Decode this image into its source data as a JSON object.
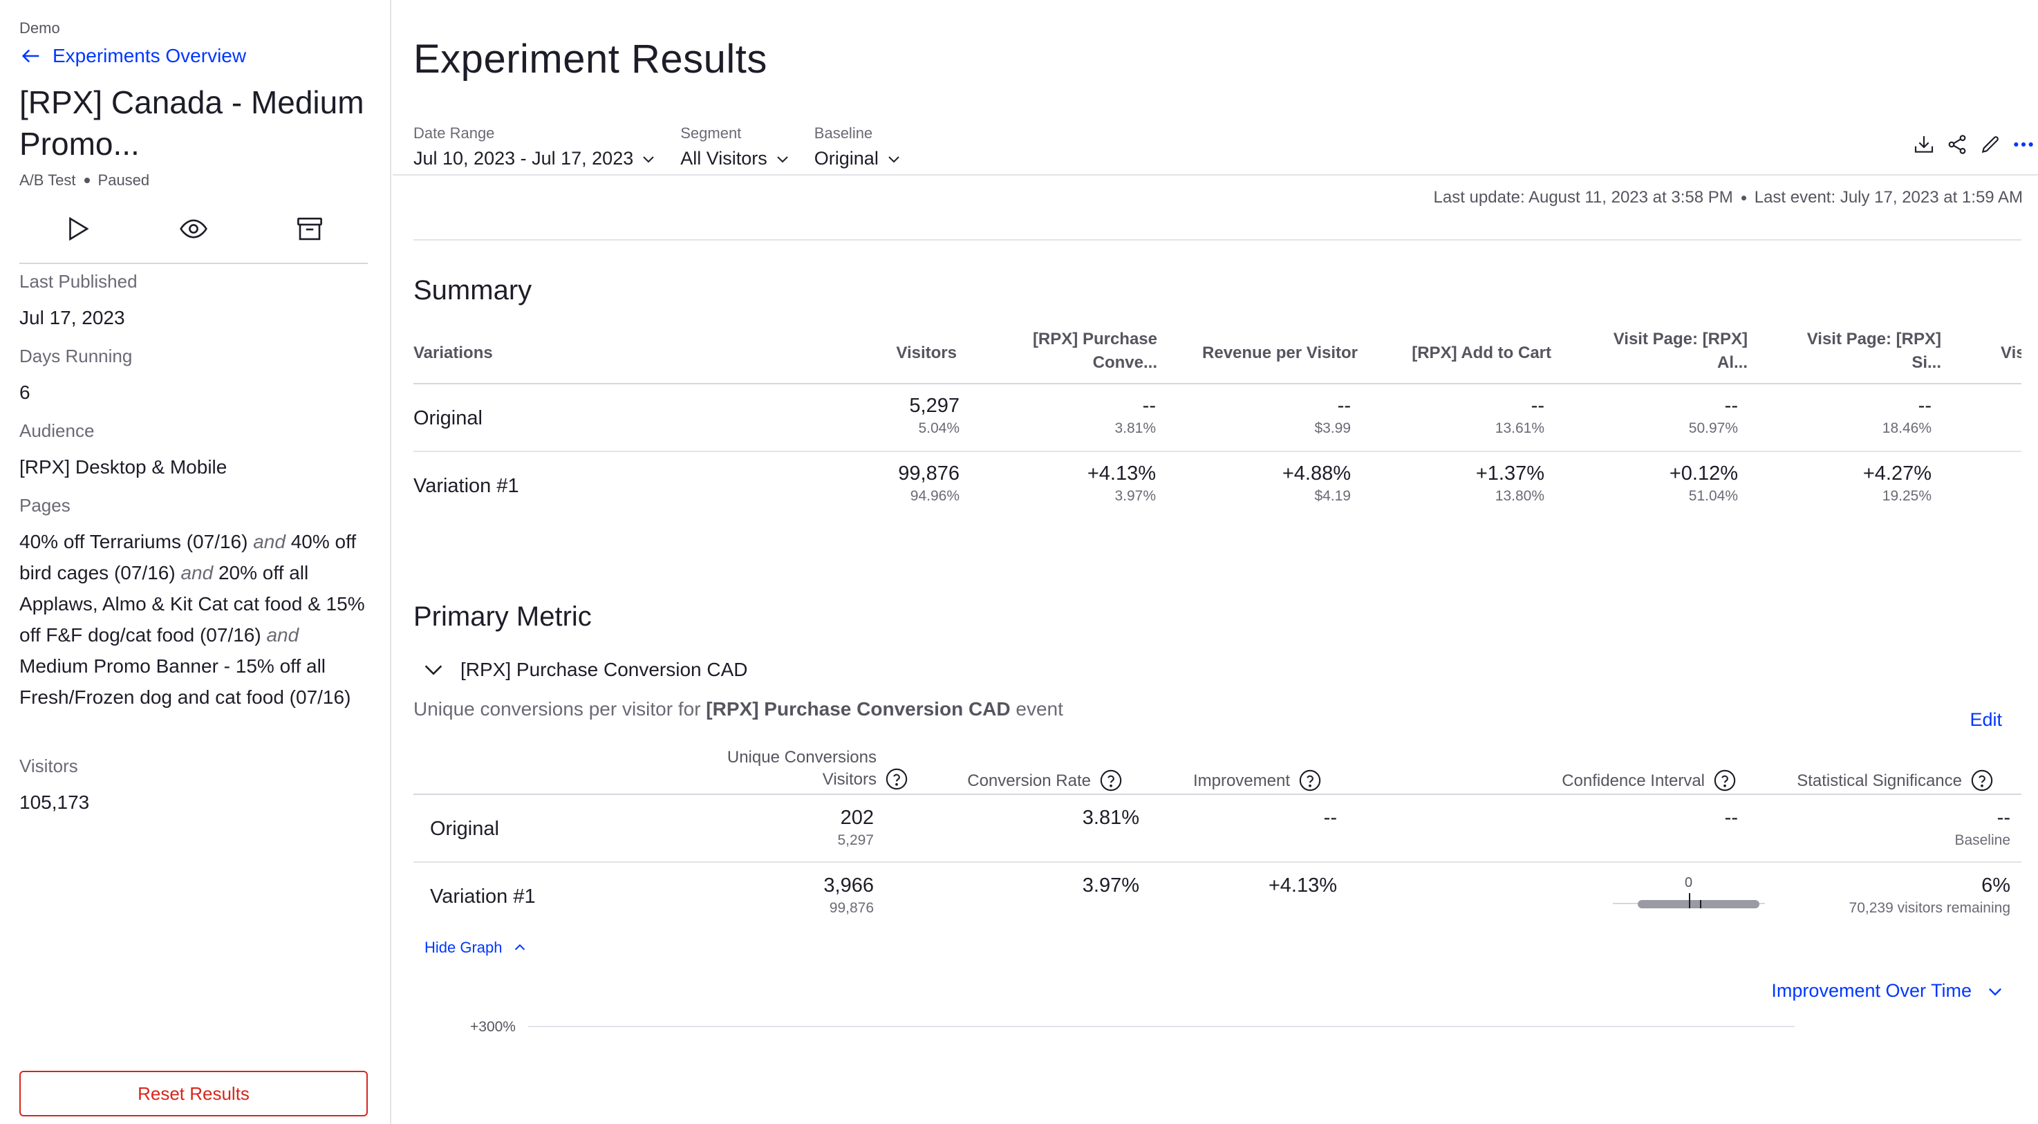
{
  "sidebar": {
    "project": "Demo",
    "back_label": "Experiments Overview",
    "title": "[RPX] Canada - Medium Promo...",
    "type": "A/B Test",
    "status": "Paused",
    "last_published_label": "Last Published",
    "last_published_value": "Jul 17, 2023",
    "days_running_label": "Days Running",
    "days_running_value": "6",
    "audience_label": "Audience",
    "audience_value": "[RPX] Desktop & Mobile",
    "pages_label": "Pages",
    "pages": [
      "40% off Terrariums (07/16)",
      "40% off bird cages (07/16)",
      "20% off all Applaws, Almo & Kit Cat cat food & 15% off F&F dog/cat food (07/16)",
      "Medium Promo Banner - 15% off all Fresh/Frozen dog and cat food (07/16)"
    ],
    "pages_joiner": "and",
    "visitors_label": "Visitors",
    "visitors_value": "105,173",
    "reset_label": "Reset Results"
  },
  "header": {
    "title": "Experiment Results",
    "filters": {
      "date_range_label": "Date Range",
      "date_range_value": "Jul 10, 2023 - Jul 17, 2023",
      "segment_label": "Segment",
      "segment_value": "All Visitors",
      "baseline_label": "Baseline",
      "baseline_value": "Original"
    },
    "last_update": "Last update: August 11, 2023 at 3:58 PM",
    "last_event": "Last event: July 17, 2023 at 1:59 AM"
  },
  "summary": {
    "title": "Summary",
    "columns": [
      "Variations",
      "Visitors",
      "[RPX] Purchase Conve...",
      "Revenue per Visitor",
      "[RPX] Add to Cart",
      "Visit Page: [RPX] Al...",
      "Visit Page: [RPX] Si...",
      "Vis"
    ],
    "column_lines": {
      "purchase": [
        "[RPX] Purchase",
        "Conve..."
      ],
      "visit_al": [
        "Visit Page: [RPX]",
        "Al..."
      ],
      "visit_si": [
        "Visit Page: [RPX]",
        "Si..."
      ]
    },
    "rows": [
      {
        "name": "Original",
        "cells": [
          {
            "main": "5,297",
            "sub": "5.04%"
          },
          {
            "main": "--",
            "sub": "3.81%"
          },
          {
            "main": "--",
            "sub": "$3.99"
          },
          {
            "main": "--",
            "sub": "13.61%"
          },
          {
            "main": "--",
            "sub": "50.97%"
          },
          {
            "main": "--",
            "sub": "18.46%"
          }
        ]
      },
      {
        "name": "Variation #1",
        "cells": [
          {
            "main": "99,876",
            "sub": "94.96%"
          },
          {
            "main": "+4.13%",
            "sub": "3.97%"
          },
          {
            "main": "+4.88%",
            "sub": "$4.19"
          },
          {
            "main": "+1.37%",
            "sub": "13.80%"
          },
          {
            "main": "+0.12%",
            "sub": "51.04%"
          },
          {
            "main": "+4.27%",
            "sub": "19.25%"
          }
        ]
      }
    ]
  },
  "primary_metric": {
    "title": "Primary Metric",
    "metric_name": "[RPX] Purchase Conversion CAD",
    "desc_prefix": "Unique conversions per visitor for",
    "desc_metric": "[RPX] Purchase Conversion CAD",
    "desc_suffix": "event",
    "edit_label": "Edit",
    "columns": {
      "uc_line1": "Unique Conversions",
      "uc_line2": "Visitors",
      "conversion_rate": "Conversion Rate",
      "improvement": "Improvement",
      "confidence_interval": "Confidence Interval",
      "statistical_significance": "Statistical Significance"
    },
    "rows": [
      {
        "name": "Original",
        "conversions": "202",
        "visitors": "5,297",
        "rate": "3.81%",
        "improvement": "--",
        "ci": "--",
        "sig": "--",
        "sig_sub": "Baseline"
      },
      {
        "name": "Variation #1",
        "conversions": "3,966",
        "visitors": "99,876",
        "rate": "3.97%",
        "improvement": "+4.13%",
        "ci_zero_label": "0",
        "sig": "6%",
        "sig_sub": "70,239 visitors remaining"
      }
    ],
    "hide_graph_label": "Hide Graph",
    "chart_selector_label": "Improvement Over Time",
    "chart_tick_top": "+300%"
  },
  "colors": {
    "link": "#0037ff",
    "danger": "#d8261c",
    "text": "#1d1d28",
    "muted": "#6a6a75"
  }
}
